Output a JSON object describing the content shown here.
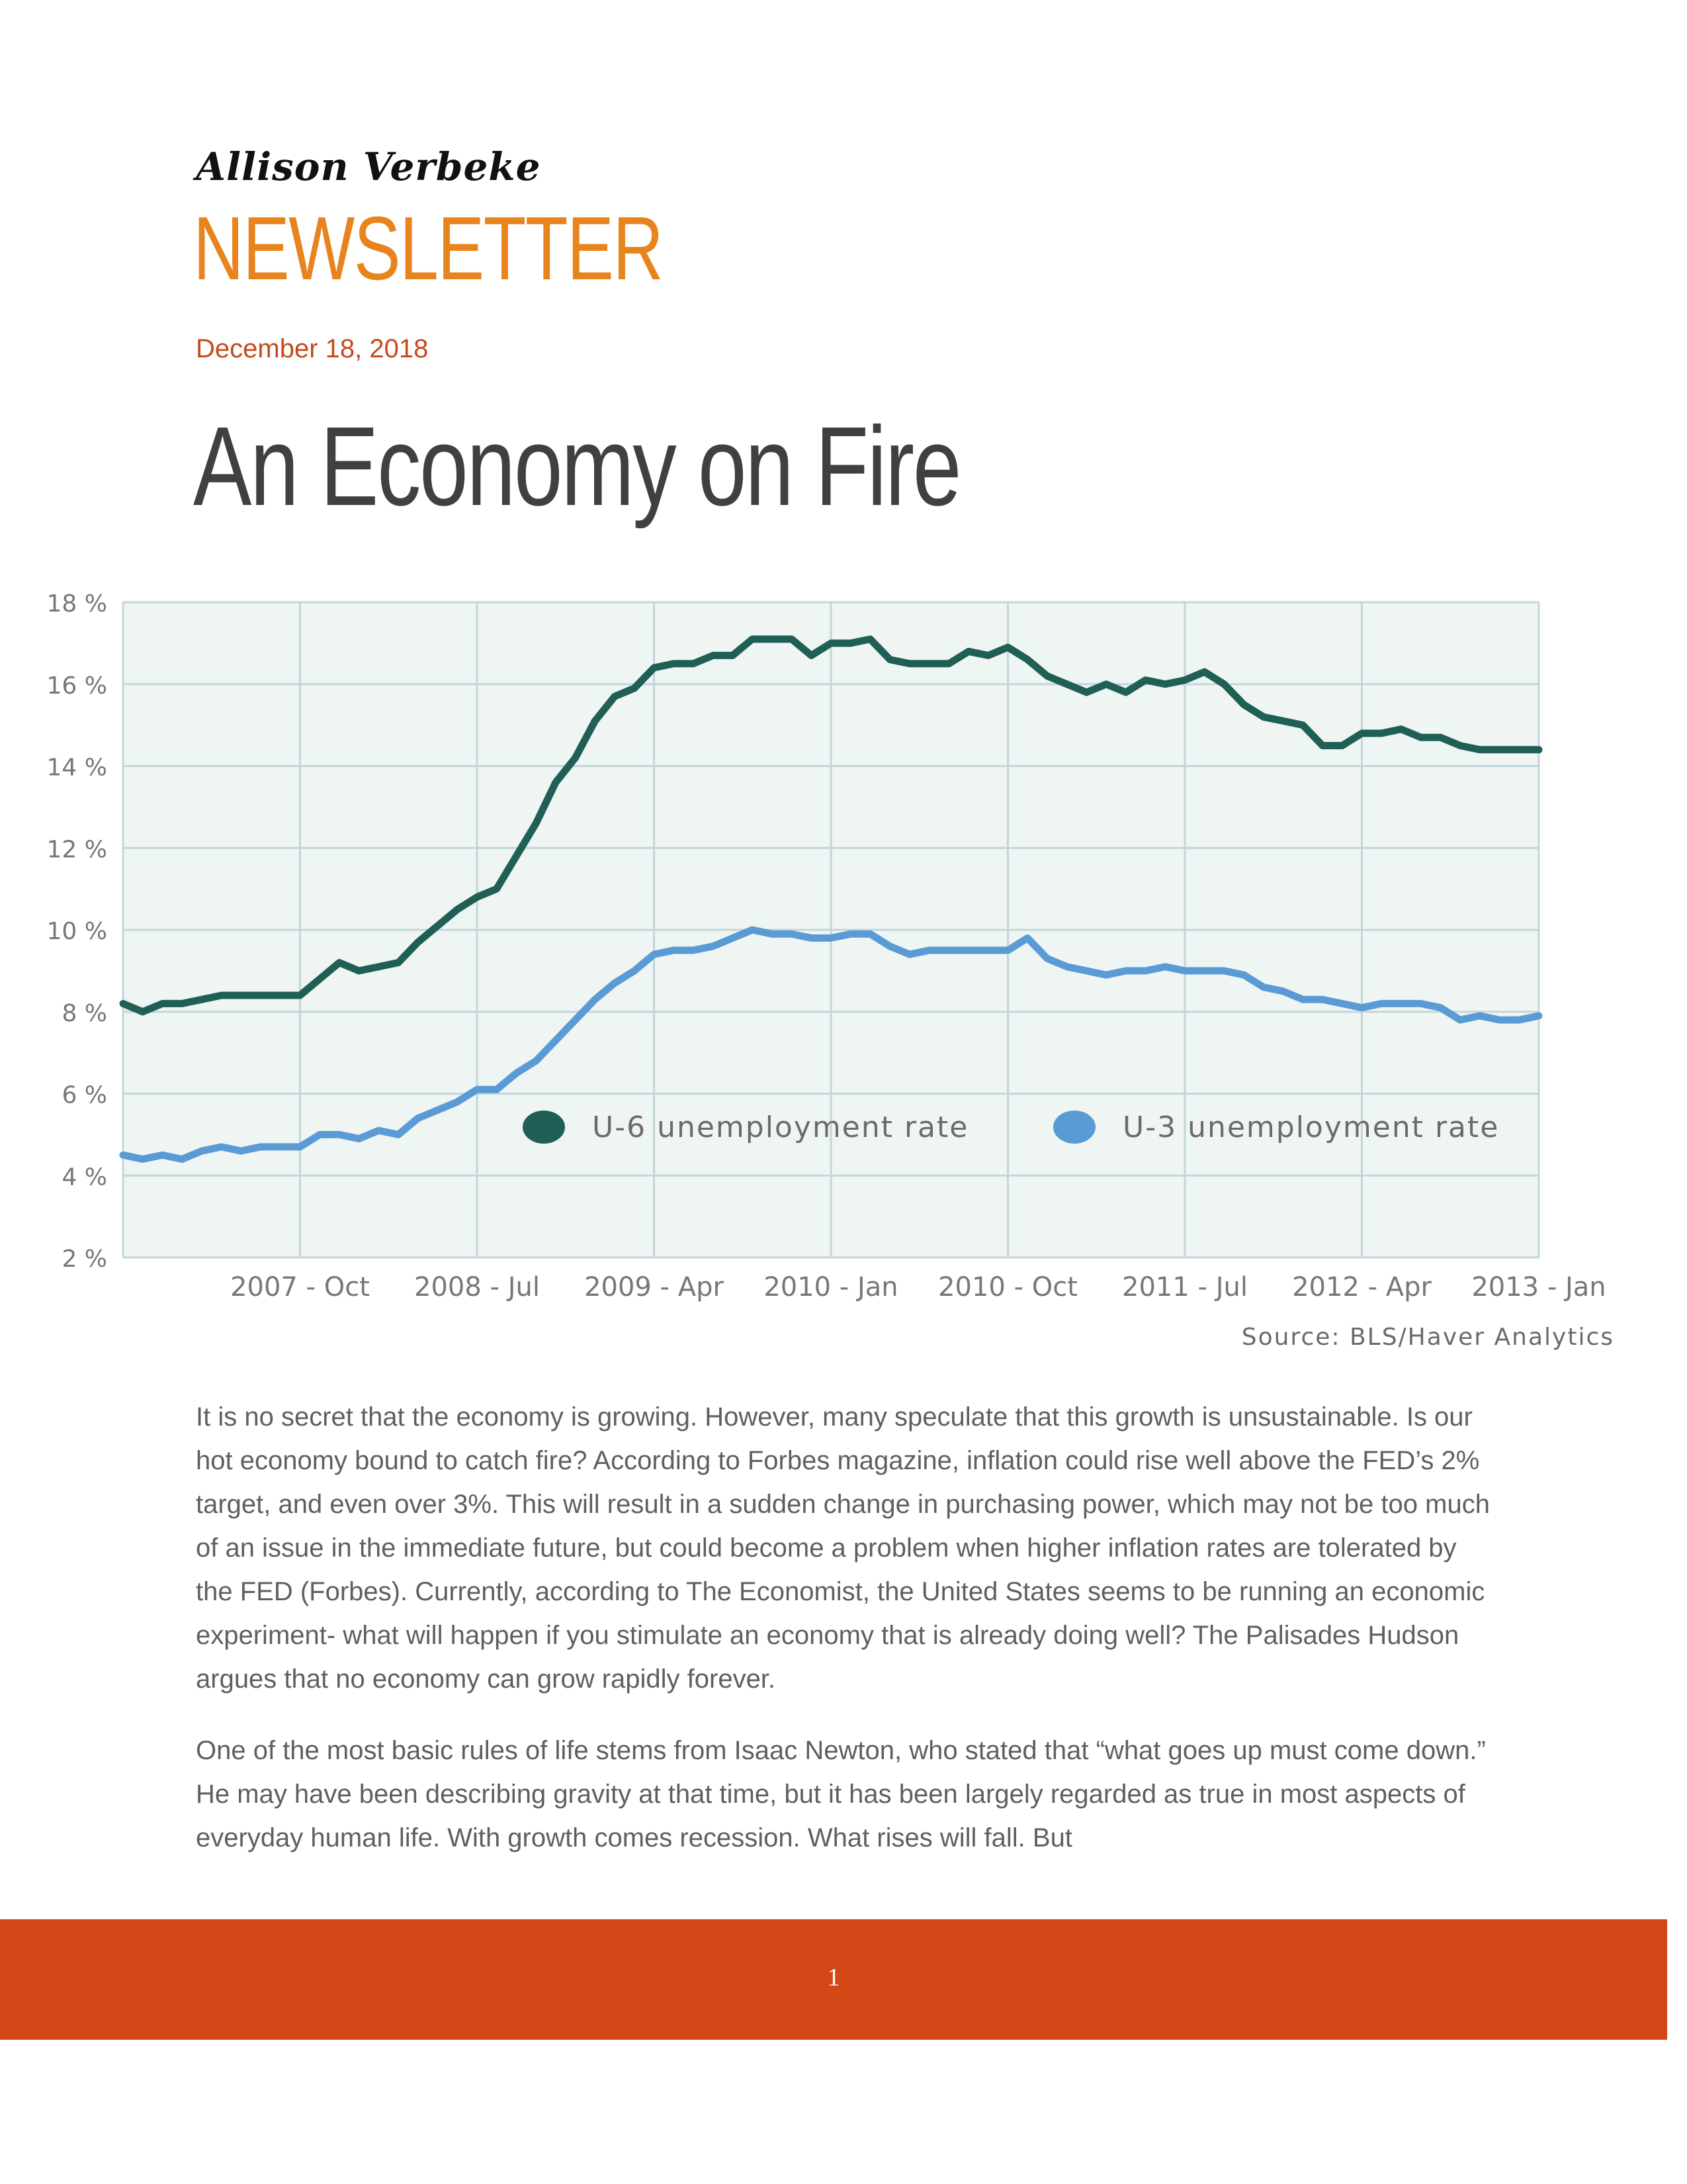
{
  "header": {
    "author": "Allison Verbeke",
    "masthead": "NEWSLETTER",
    "date": "December 18, 2018"
  },
  "article": {
    "title": "An Economy on Fire",
    "paragraphs": [
      "It is no secret that the economy is growing.  However, many speculate that this growth is unsustainable.  Is our hot economy bound to catch fire?  According to Forbes magazine, inflation could rise well above the FED’s 2% target, and even over 3%.  This will result in a sudden change in purchasing power, which may not be too much of an issue in the immediate future, but could become a problem when higher inflation rates are tolerated by the FED (Forbes).  Currently, according to The Economist, the United States seems to be running an economic experiment- what will happen if you stimulate an economy that is already doing well?  The Palisades Hudson argues that no economy can grow rapidly forever.",
      "One of the most basic rules of life stems from Isaac Newton, who stated that “what goes up must come down.”  He may have been describing gravity at that time, but it has been largely regarded as true in most aspects of everyday human life.  With growth comes recession.  What rises will fall.  But"
    ]
  },
  "chart_data": {
    "type": "line",
    "source": "Source: BLS/Haver Analytics",
    "ylim": [
      2,
      18
    ],
    "y_ticks": [
      2,
      4,
      6,
      8,
      10,
      12,
      14,
      16,
      18
    ],
    "y_tick_labels": [
      "2 %",
      "4 %",
      "6 %",
      "8 %",
      "10 %",
      "12 %",
      "14 %",
      "16 %",
      "18 %"
    ],
    "x_tick_labels": [
      "2007 - Oct",
      "2008 - Jul",
      "2009 - Apr",
      "2010 - Jan",
      "2010 - Oct",
      "2011 - Jul",
      "2012 - Apr",
      "2013 - Jan"
    ],
    "x_start": "2007 - Jan",
    "x_end": "2013 - Jan",
    "grid": true,
    "legend_position": "inside-bottom",
    "series": [
      {
        "name": "U-6 unemployment rate",
        "color": "#1f5f55",
        "values": [
          8.2,
          8.0,
          8.2,
          8.2,
          8.3,
          8.4,
          8.4,
          8.4,
          8.4,
          8.4,
          8.8,
          9.2,
          9.0,
          9.1,
          9.2,
          9.7,
          10.1,
          10.5,
          10.8,
          11.0,
          11.8,
          12.6,
          13.6,
          14.2,
          15.1,
          15.7,
          15.9,
          16.4,
          16.5,
          16.5,
          16.7,
          16.7,
          17.1,
          17.1,
          17.1,
          16.7,
          17.0,
          17.0,
          17.1,
          16.6,
          16.5,
          16.5,
          16.5,
          16.8,
          16.7,
          16.9,
          16.6,
          16.2,
          16.0,
          15.8,
          16.0,
          15.8,
          16.1,
          16.0,
          16.1,
          16.3,
          16.0,
          15.5,
          15.2,
          15.1,
          15.0,
          14.5,
          14.5,
          14.8,
          14.8,
          14.9,
          14.7,
          14.7,
          14.5,
          14.4,
          14.4,
          14.4,
          14.4
        ]
      },
      {
        "name": "U-3 unemployment rate",
        "color": "#5b9bd5",
        "values": [
          4.5,
          4.4,
          4.5,
          4.4,
          4.6,
          4.7,
          4.6,
          4.7,
          4.7,
          4.7,
          5.0,
          5.0,
          4.9,
          5.1,
          5.0,
          5.4,
          5.6,
          5.8,
          6.1,
          6.1,
          6.5,
          6.8,
          7.3,
          7.8,
          8.3,
          8.7,
          9.0,
          9.4,
          9.5,
          9.5,
          9.6,
          9.8,
          10.0,
          9.9,
          9.9,
          9.8,
          9.8,
          9.9,
          9.9,
          9.6,
          9.4,
          9.5,
          9.5,
          9.5,
          9.5,
          9.5,
          9.8,
          9.3,
          9.1,
          9.0,
          8.9,
          9.0,
          9.0,
          9.1,
          9.0,
          9.0,
          9.0,
          8.9,
          8.6,
          8.5,
          8.3,
          8.3,
          8.2,
          8.1,
          8.2,
          8.2,
          8.2,
          8.1,
          7.8,
          7.9,
          7.8,
          7.8,
          7.9
        ]
      }
    ]
  },
  "footer": {
    "page_number": "1",
    "color": "#d44716"
  }
}
